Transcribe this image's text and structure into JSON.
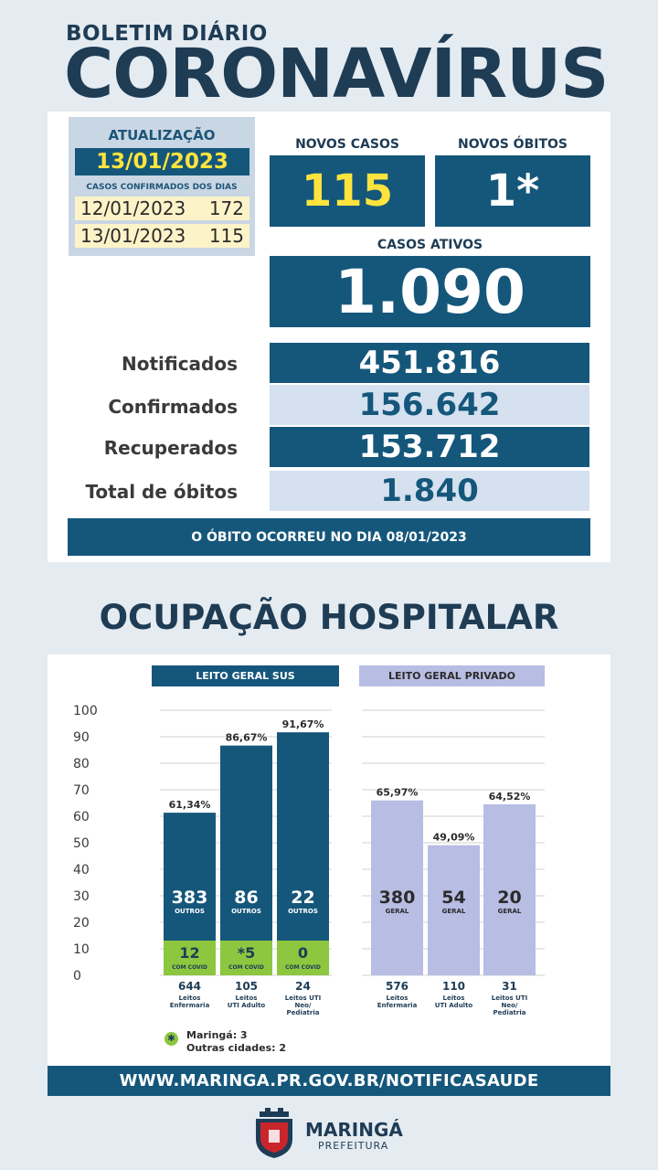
{
  "header": {
    "subtitle": "BOLETIM DIÁRIO",
    "title": "CORONAVÍRUS"
  },
  "update": {
    "label": "ATUALIZAÇÃO",
    "date": "13/01/2023",
    "cases_by_day_label": "CASOS CONFIRMADOS DOS DIAS",
    "days": [
      {
        "date": "12/01/2023",
        "count": "172"
      },
      {
        "date": "13/01/2023",
        "count": "115"
      }
    ]
  },
  "new_cases": {
    "label": "NOVOS CASOS",
    "value": "115"
  },
  "new_deaths": {
    "label": "NOVOS ÓBITOS",
    "value": "1*"
  },
  "active_cases": {
    "label": "CASOS ATIVOS",
    "value": "1.090"
  },
  "stats": [
    {
      "label": "Notificados",
      "value": "451.816"
    },
    {
      "label": "Confirmados",
      "value": "156.642"
    },
    {
      "label": "Recuperados",
      "value": "153.712"
    },
    {
      "label": "Total de óbitos",
      "value": "1.840"
    }
  ],
  "death_note": "O ÓBITO OCORREU NO DIA 08/01/2023",
  "hospital": {
    "title": "OCUPAÇÃO HOSPITALAR",
    "sus_label": "LEITO GERAL SUS",
    "private_label": "LEITO GERAL PRIVADO"
  },
  "colors": {
    "dark_blue": "#15577b",
    "navy": "#1f3c55",
    "yellow": "#ffe43d",
    "green": "#8dc63f",
    "lavender": "#b8bde3",
    "light_blue": "#d5e1ef"
  },
  "chart_data": {
    "type": "bar",
    "ylim": [
      0,
      100
    ],
    "y_ticks": [
      "100",
      "90",
      "80",
      "70",
      "60",
      "50",
      "40",
      "30",
      "20",
      "10",
      "0"
    ],
    "groups": [
      {
        "name": "LEITO GERAL SUS",
        "bars": [
          {
            "pct": 61.34,
            "pct_label": "61,34%",
            "others": "383",
            "others_label": "OUTROS",
            "covid": "12",
            "covid_label": "COM COVID",
            "total": "644",
            "desc": [
              "Leitos",
              "Enfermaria"
            ]
          },
          {
            "pct": 86.67,
            "pct_label": "86,67%",
            "others": "86",
            "others_label": "OUTROS",
            "covid": "*5",
            "covid_label": "COM COVID",
            "total": "105",
            "desc": [
              "Leitos",
              "UTI Adulto"
            ]
          },
          {
            "pct": 91.67,
            "pct_label": "91,67%",
            "others": "22",
            "others_label": "OUTROS",
            "covid": "0",
            "covid_label": "COM COVID",
            "total": "24",
            "desc": [
              "Leitos UTI",
              "Neo/",
              "Pediatria"
            ]
          }
        ]
      },
      {
        "name": "LEITO GERAL PRIVADO",
        "bars": [
          {
            "pct": 65.97,
            "pct_label": "65,97%",
            "others": "380",
            "others_label": "GERAL",
            "total": "576",
            "desc": [
              "Leitos",
              "Enfermaria"
            ]
          },
          {
            "pct": 49.09,
            "pct_label": "49,09%",
            "others": "54",
            "others_label": "GERAL",
            "total": "110",
            "desc": [
              "Leitos",
              "UTI Adulto"
            ]
          },
          {
            "pct": 64.52,
            "pct_label": "64,52%",
            "others": "20",
            "others_label": "GERAL",
            "total": "31",
            "desc": [
              "Leitos UTI",
              "Neo/",
              "Pediatria"
            ]
          }
        ]
      }
    ]
  },
  "legend": {
    "symbol": "✱",
    "line1": "Maringá: 3",
    "line2": "Outras cidades: 2"
  },
  "footer": {
    "url": "WWW.MARINGA.PR.GOV.BR/NOTIFICASAUDE",
    "logo_name": "MARINGÁ",
    "logo_sub": "PREFEITURA"
  }
}
